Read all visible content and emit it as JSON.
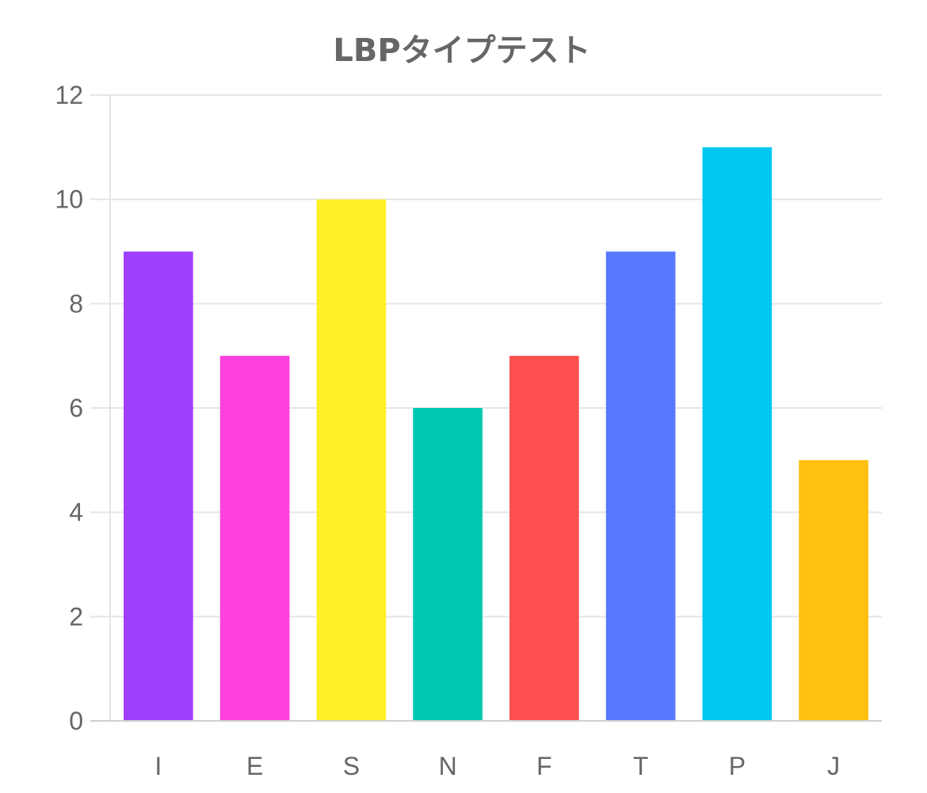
{
  "chart_data": {
    "type": "bar",
    "title": "LBPタイプテスト",
    "xlabel": "",
    "ylabel": "",
    "categories": [
      "I",
      "E",
      "S",
      "N",
      "F",
      "T",
      "P",
      "J"
    ],
    "values": [
      9,
      7,
      10,
      6,
      7,
      9,
      11,
      5
    ],
    "colors": [
      "#a040ff",
      "#ff40e0",
      "#fff028",
      "#00c8b0",
      "#ff5050",
      "#5878ff",
      "#00c8f0",
      "#ffc010"
    ],
    "ylim": [
      0,
      12
    ],
    "yticks": [
      0,
      2,
      4,
      6,
      8,
      10,
      12
    ],
    "grid": true,
    "legend": "none"
  }
}
